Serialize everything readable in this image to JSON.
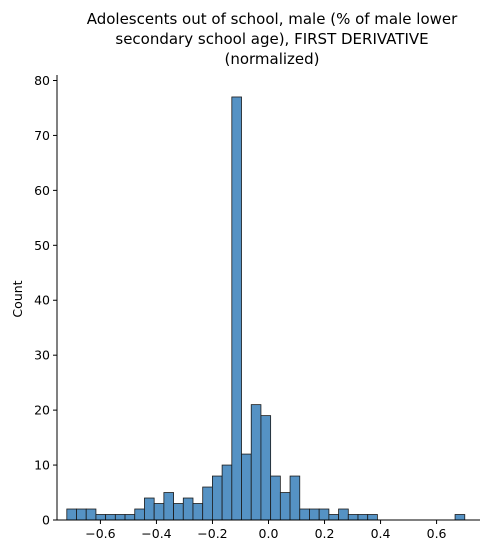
{
  "chart_data": {
    "type": "bar",
    "title_lines": [
      "Adolescents out of school, male (% of male lower",
      "secondary school age), FIRST DERIVATIVE",
      "(normalized)"
    ],
    "xlabel": "",
    "ylabel": "Count",
    "xlim": [
      -0.755,
      0.755
    ],
    "ylim": [
      0,
      81
    ],
    "x_ticks": [
      -0.6,
      -0.4,
      -0.2,
      0.0,
      0.2,
      0.4,
      0.6
    ],
    "x_tick_labels": [
      "−0.6",
      "−0.4",
      "−0.2",
      "0.0",
      "0.2",
      "0.4",
      "0.6"
    ],
    "y_ticks": [
      0,
      10,
      20,
      30,
      40,
      50,
      60,
      70,
      80
    ],
    "y_tick_labels": [
      "0",
      "10",
      "20",
      "30",
      "40",
      "50",
      "60",
      "70",
      "80"
    ],
    "bin_start": -0.72,
    "bin_width": 0.03465,
    "counts": [
      2,
      2,
      2,
      1,
      1,
      1,
      1,
      2,
      4,
      3,
      5,
      3,
      4,
      3,
      6,
      8,
      10,
      77,
      12,
      21,
      19,
      8,
      5,
      8,
      2,
      2,
      2,
      1,
      2,
      1,
      1,
      1,
      0,
      0,
      0,
      0,
      0,
      0,
      0,
      0,
      1
    ],
    "bar_color": "#5592c4",
    "bar_edge_color": "#1a1a1a",
    "grid": false
  }
}
